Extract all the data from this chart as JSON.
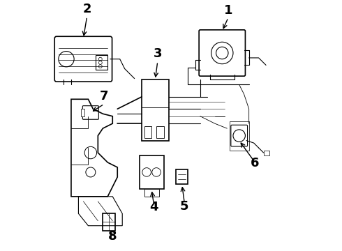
{
  "title": "",
  "background_color": "#ffffff",
  "line_color": "#000000",
  "text_color": "#000000",
  "figsize": [
    4.9,
    3.6
  ],
  "dpi": 100,
  "label_fontsize": 13,
  "label_fontweight": "bold"
}
